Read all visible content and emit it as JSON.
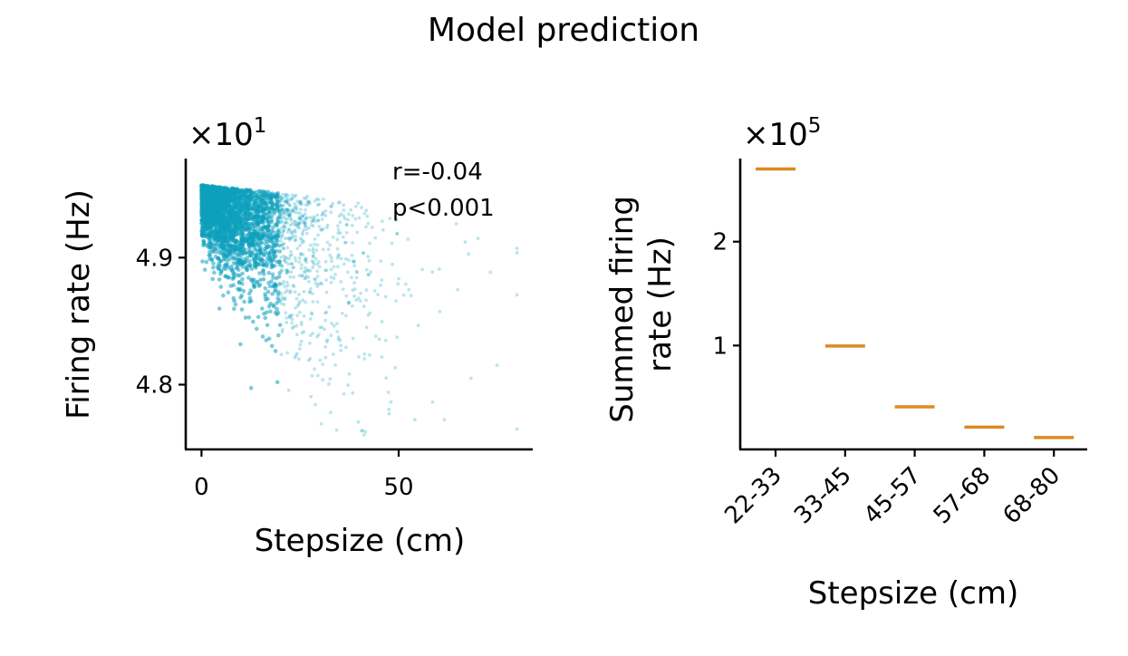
{
  "figure": {
    "suptitle": "Model prediction"
  },
  "chart_data": [
    {
      "type": "scatter",
      "title": "",
      "xlabel": "Stepsize (cm)",
      "ylabel": "Firing rate (Hz)",
      "y_offset_label": "×10",
      "y_offset_exponent": "1",
      "xlim": [
        -4,
        84
      ],
      "ylim": [
        4.749,
        4.978
      ],
      "xticks": [
        0,
        50
      ],
      "xtick_labels": [
        "0",
        "50"
      ],
      "yticks": [
        4.8,
        4.9
      ],
      "ytick_labels": [
        "4.8",
        "4.9"
      ],
      "annotation_lines": [
        "r=-0.04",
        "p<0.001"
      ],
      "correlation_r": -0.04,
      "p_value": "<0.001",
      "point_color": "#0ea0bd",
      "points_x_range": [
        0,
        80
      ],
      "points_y_range": [
        4.76,
        4.963
      ],
      "grid": false,
      "legend": "none"
    },
    {
      "type": "box",
      "title": "",
      "xlabel": "Stepsize (cm)",
      "ylabel_lines": [
        "Summed firing",
        "rate (Hz)"
      ],
      "y_offset_label": "×10",
      "y_offset_exponent": "5",
      "categories": [
        "22-33",
        "33-45",
        "45-57",
        "57-68",
        "68-80"
      ],
      "values": [
        270000,
        99500,
        41000,
        21500,
        11500
      ],
      "ylim": [
        0,
        280000
      ],
      "yticks": [
        100000,
        200000
      ],
      "ytick_labels": [
        "1",
        "2"
      ],
      "box_color": "#dd8a1e",
      "grid": false,
      "legend": "none"
    }
  ]
}
